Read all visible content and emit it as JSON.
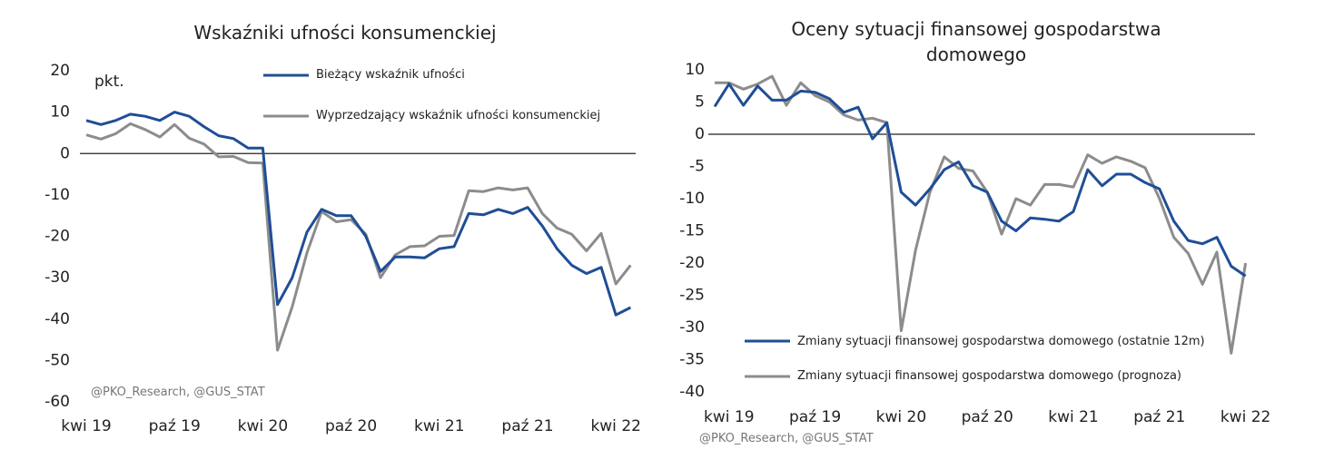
{
  "chart_data": [
    {
      "type": "line",
      "title": "Wskaźniki ufności konsumenckiej",
      "annotation": "pkt.",
      "source": "@PKO_Research, @GUS_STAT",
      "categories": [
        "kwi 19",
        null,
        null,
        null,
        null,
        null,
        "paź 19",
        null,
        null,
        null,
        null,
        null,
        "kwi 20",
        null,
        null,
        null,
        null,
        null,
        "paź 20",
        null,
        null,
        null,
        null,
        null,
        "kwi 21",
        null,
        null,
        null,
        null,
        null,
        "paź 21",
        null,
        null,
        null,
        null,
        null,
        "kwi 22",
        null
      ],
      "series": [
        {
          "name": "Bieżący wskaźnik ufności",
          "color": "#1f4e96",
          "values": [
            8,
            7,
            8,
            9.5,
            9,
            8,
            10,
            9,
            6.5,
            4.3,
            3.6,
            1.3,
            1.3,
            -36.5,
            -30,
            -19,
            -13.5,
            -15,
            -15,
            -20,
            -28.5,
            -25,
            -25,
            -25.2,
            -23,
            -22.5,
            -14.5,
            -14.8,
            -13.5,
            -14.5,
            -13,
            -17.5,
            -23,
            -27,
            -29,
            -27.5,
            -39,
            -37.2
          ]
        },
        {
          "name": "Wyprzedzający wskaźnik ufności konsumenckiej",
          "color": "#8c8c8c",
          "values": [
            4.5,
            3.5,
            4.8,
            7.2,
            5.8,
            4,
            7,
            3.7,
            2.3,
            -0.8,
            -0.7,
            -2.2,
            -2.3,
            -47.5,
            -37,
            -24,
            -14,
            -16.5,
            -16,
            -19.5,
            -30,
            -24.5,
            -22.5,
            -22.3,
            -20,
            -19.8,
            -9,
            -9.2,
            -8.3,
            -8.8,
            -8.3,
            -14.5,
            -18,
            -19.5,
            -23.5,
            -19.3,
            -31.5,
            -27
          ]
        }
      ],
      "ylim": [
        -60,
        20
      ],
      "yticks": [
        20,
        10,
        0,
        -10,
        -20,
        -30,
        -40,
        -50,
        -60
      ]
    },
    {
      "type": "line",
      "title": "Oceny sytuacji finansowej gospodarstwa domowego",
      "source": "@PKO_Research, @GUS_STAT",
      "categories": [
        null,
        "kwi 19",
        null,
        null,
        null,
        null,
        null,
        "paź 19",
        null,
        null,
        null,
        null,
        null,
        "kwi 20",
        null,
        null,
        null,
        null,
        null,
        "paź 20",
        null,
        null,
        null,
        null,
        null,
        "kwi 21",
        null,
        null,
        null,
        null,
        null,
        "paź 21",
        null,
        null,
        null,
        null,
        null,
        "kwi 22"
      ],
      "series": [
        {
          "name": "Zmiany sytuacji finansowej gospodarstwa domowego (ostatnie 12m)",
          "color": "#1f4e96",
          "values": [
            4.3,
            7.8,
            4.5,
            7.5,
            5.3,
            5.3,
            6.7,
            6.5,
            5.5,
            3.4,
            4.2,
            -0.7,
            1.8,
            -9,
            -11,
            -8.5,
            -5.5,
            -4.3,
            -8,
            -9,
            -13.5,
            -15,
            -13,
            -13.2,
            -13.5,
            -12,
            -5.5,
            -8,
            -6.2,
            -6.2,
            -7.5,
            -8.5,
            -13.5,
            -16.5,
            -17,
            -16,
            -20.5,
            -22
          ]
        },
        {
          "name": "Zmiany sytuacji finansowej gospodarstwa domowego (prognoza)",
          "color": "#8c8c8c",
          "values": [
            8,
            8,
            7,
            7.8,
            9,
            4.5,
            8,
            6,
            5,
            3,
            2.2,
            2.5,
            1.8,
            -30.5,
            -18,
            -9,
            -3.5,
            -5.3,
            -5.7,
            -9,
            -15.5,
            -10,
            -11,
            -7.8,
            -7.8,
            -8.2,
            -3.2,
            -4.5,
            -3.5,
            -4.2,
            -5.2,
            -10,
            -16,
            -18.5,
            -23.3,
            -18.3,
            -34,
            -20
          ]
        }
      ],
      "ylim": [
        -40,
        10
      ],
      "yticks": [
        10,
        5,
        0,
        -5,
        -10,
        -15,
        -20,
        -25,
        -30,
        -35,
        -40
      ]
    }
  ]
}
